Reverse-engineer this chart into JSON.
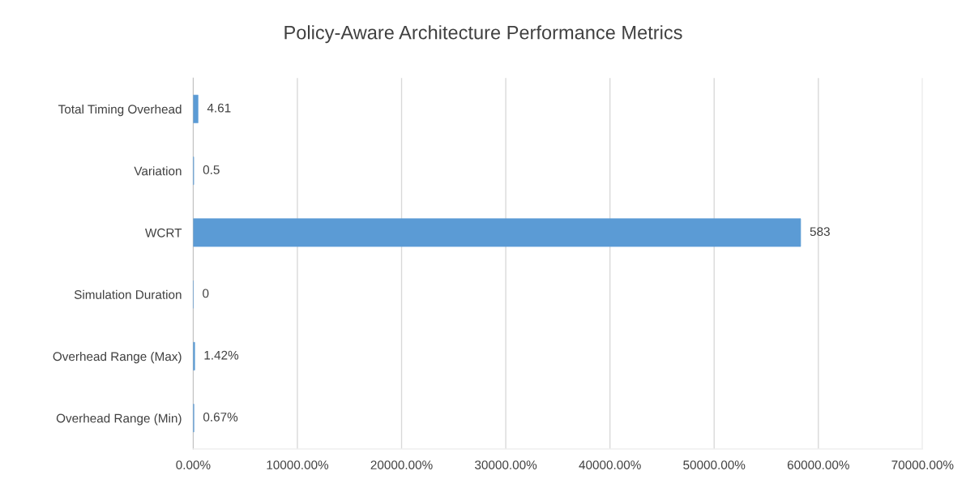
{
  "chart_data": {
    "type": "bar",
    "orientation": "horizontal",
    "title": "Policy-Aware Architecture Performance Metrics",
    "categories": [
      "Total Timing Overhead",
      "Variation",
      "WCRT",
      "Simulation Duration",
      "Overhead Range (Max)",
      "Overhead Range (Min)"
    ],
    "values": [
      4.61,
      0.5,
      583,
      0,
      1.42,
      0.67
    ],
    "value_labels": [
      "4.61",
      "0.5",
      "583",
      "0",
      "1.42%",
      "0.67%"
    ],
    "color": "#5b9bd5",
    "xlim": [
      0,
      700
    ],
    "xticks": [
      {
        "value": 0,
        "label": "0.00%"
      },
      {
        "value": 100,
        "label": "10000.00%"
      },
      {
        "value": 200,
        "label": "20000.00%"
      },
      {
        "value": 300,
        "label": "30000.00%"
      },
      {
        "value": 400,
        "label": "40000.00%"
      },
      {
        "value": 500,
        "label": "50000.00%"
      },
      {
        "value": 600,
        "label": "60000.00%"
      },
      {
        "value": 700,
        "label": "70000.00%"
      }
    ],
    "grid": "x",
    "legend": false
  }
}
